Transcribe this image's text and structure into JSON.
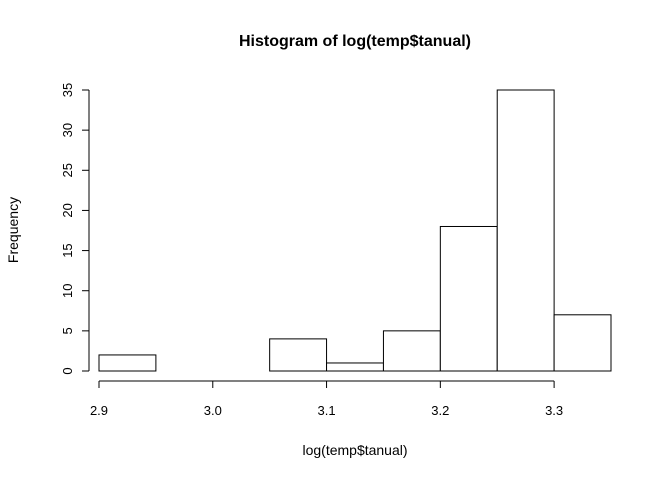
{
  "chart_data": {
    "type": "bar",
    "title": "Histogram of log(temp$tanual)",
    "xlabel": "log(temp$tanual)",
    "ylabel": "Frequency",
    "bins": [
      {
        "x0": 2.9,
        "x1": 2.95,
        "count": 2
      },
      {
        "x0": 2.95,
        "x1": 3.0,
        "count": 0
      },
      {
        "x0": 3.0,
        "x1": 3.05,
        "count": 0
      },
      {
        "x0": 3.05,
        "x1": 3.1,
        "count": 4
      },
      {
        "x0": 3.1,
        "x1": 3.15,
        "count": 1
      },
      {
        "x0": 3.15,
        "x1": 3.2,
        "count": 5
      },
      {
        "x0": 3.2,
        "x1": 3.25,
        "count": 18
      },
      {
        "x0": 3.25,
        "x1": 3.3,
        "count": 35
      },
      {
        "x0": 3.3,
        "x1": 3.35,
        "count": 7
      }
    ],
    "xlim": [
      2.9,
      3.35
    ],
    "ylim": [
      0,
      35
    ],
    "xticks": [
      2.9,
      3.0,
      3.1,
      3.2,
      3.3
    ],
    "xtick_labels": [
      "2.9",
      "3.0",
      "3.1",
      "3.2",
      "3.3"
    ],
    "yticks": [
      0,
      5,
      10,
      15,
      20,
      25,
      30,
      35
    ],
    "ytick_labels": [
      "0",
      "5",
      "10",
      "15",
      "20",
      "25",
      "30",
      "35"
    ],
    "grid": false,
    "bar_fill": "#ffffff",
    "bar_stroke": "#000000"
  }
}
